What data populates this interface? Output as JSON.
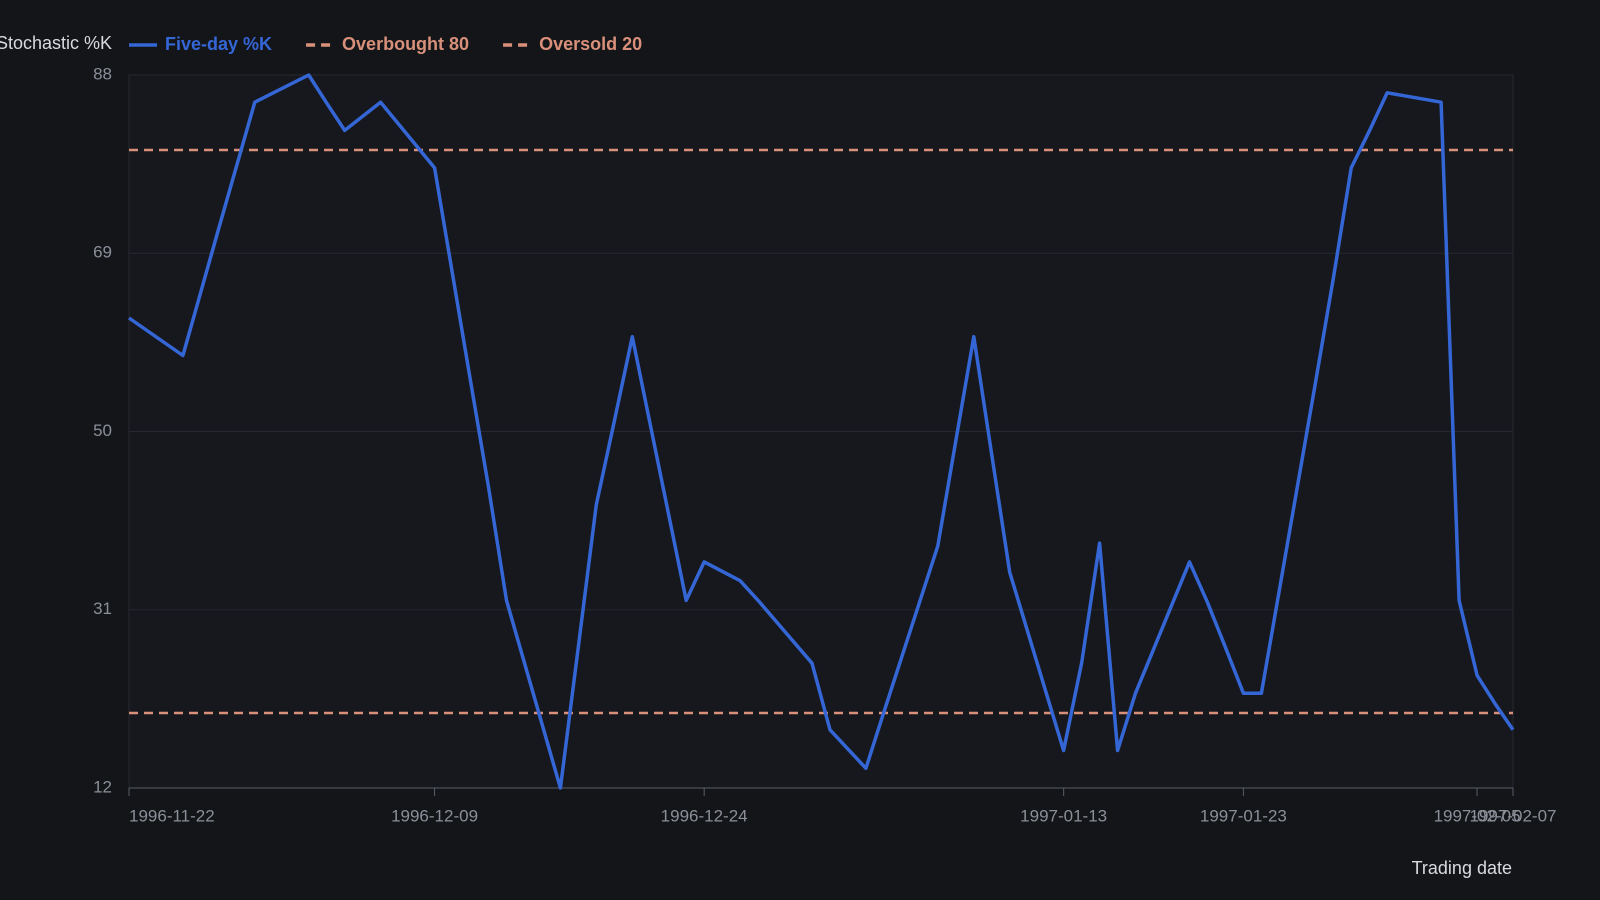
{
  "chart_data": {
    "type": "line",
    "y_label": "Stochastic %K",
    "x_label": "Trading date",
    "x": [
      "1996-11-22",
      "1996-11-25",
      "1996-11-26",
      "1996-11-27",
      "1996-11-29",
      "1996-12-02",
      "1996-12-03",
      "1996-12-04",
      "1996-12-05",
      "1996-12-06",
      "1996-12-09",
      "1996-12-10",
      "1996-12-11",
      "1996-12-12",
      "1996-12-13",
      "1996-12-16",
      "1996-12-17",
      "1996-12-18",
      "1996-12-19",
      "1996-12-20",
      "1996-12-23",
      "1996-12-24",
      "1996-12-26",
      "1996-12-27",
      "1996-12-30",
      "1996-12-31",
      "1997-01-02",
      "1997-01-03",
      "1997-01-06",
      "1997-01-07",
      "1997-01-08",
      "1997-01-09",
      "1997-01-10",
      "1997-01-13",
      "1997-01-14",
      "1997-01-15",
      "1997-01-16",
      "1997-01-17",
      "1997-01-20",
      "1997-01-21",
      "1997-01-22",
      "1997-01-23",
      "1997-01-24",
      "1997-01-27",
      "1997-01-28",
      "1997-01-29",
      "1997-01-30",
      "1997-01-31",
      "1997-02-03",
      "1997-02-04",
      "1997-02-05",
      "1997-02-06",
      "1997-02-07"
    ],
    "series": [
      {
        "name": "Five-day %K",
        "color": "#3566d6",
        "values": [
          62.1,
          58.1,
          64.9,
          71.7,
          85.1,
          88,
          85,
          82.1,
          83.6,
          85.1,
          78.1,
          66.8,
          55.4,
          44.1,
          32,
          12,
          27.1,
          42.2,
          51.1,
          60.1,
          32,
          36.1,
          34.1,
          32,
          25.3,
          18.2,
          14.1,
          20.1,
          37.8,
          49,
          60.1,
          47.5,
          35,
          16,
          25.3,
          38.1,
          16,
          22.1,
          36.1,
          31.8,
          27,
          22.1,
          22.1,
          55.1,
          66.3,
          78.1,
          82,
          86.1,
          85.1,
          32,
          24,
          21,
          18.2
        ]
      }
    ],
    "reference_lines": [
      {
        "name": "Overbought 80",
        "value": 80,
        "color": "#d9907a"
      },
      {
        "name": "Oversold 20",
        "value": 20,
        "color": "#d9907a"
      }
    ],
    "xlim": [
      "1996-11-22",
      "1997-02-07"
    ],
    "xticks": [
      "1996-11-22",
      "1996-12-09",
      "1996-12-24",
      "1997-01-13",
      "1997-01-23",
      "1997-02-05",
      "1997-02-07"
    ],
    "ylim": [
      12,
      88
    ],
    "yticks": [
      12,
      31,
      50,
      69,
      88
    ],
    "grid": true
  }
}
